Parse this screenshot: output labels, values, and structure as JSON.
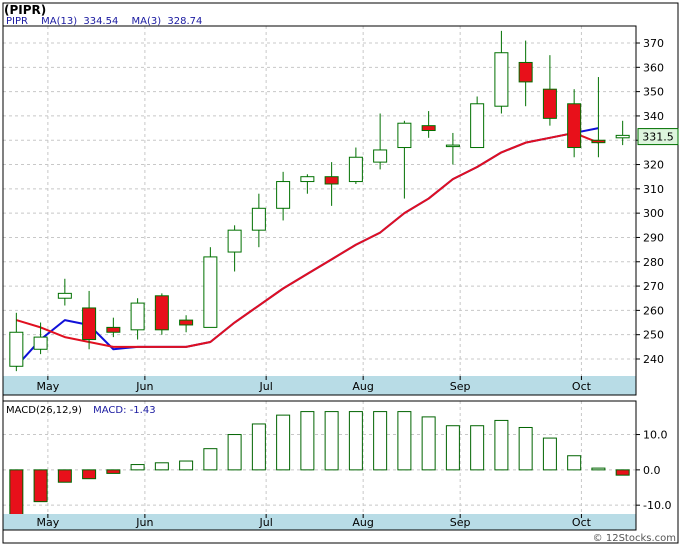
{
  "title": "(PIPR)",
  "footer": "© 12Stocks.com",
  "colors": {
    "up": "#ffffff",
    "down": "#e8101a",
    "candle_border": "#007000",
    "ma13": "#1010d8",
    "ma3": "#e01020",
    "macd_bar": "#006400",
    "axis_band": "#b8dce6",
    "legend_text": "#1a1aa0",
    "price_badge": "#ddf5dd"
  },
  "chart_data": [
    {
      "type": "candlestick",
      "legend": [
        {
          "name": "PIPR",
          "color": "#1a1aa0"
        },
        {
          "name": "MA(13)",
          "value": "334.54",
          "color": "#1a1aa0"
        },
        {
          "name": "MA(3)",
          "value": "328.74",
          "color": "#1a1aa0"
        }
      ],
      "x_labels": [
        "May",
        "Jun",
        "Jul",
        "Aug",
        "Sep",
        "Oct"
      ],
      "x_label_index": [
        1.3,
        5.3,
        10.3,
        14.3,
        18.3,
        23.3
      ],
      "yticks": [
        240,
        250,
        260,
        270,
        280,
        290,
        300,
        310,
        320,
        330,
        340,
        350,
        360,
        370
      ],
      "ylim": [
        233,
        377
      ],
      "last_price": "331.5",
      "last_price_value": 331.5,
      "candles": [
        {
          "o": 237,
          "h": 259,
          "l": 235,
          "c": 251
        },
        {
          "o": 244,
          "h": 255,
          "l": 242,
          "c": 249
        },
        {
          "o": 265,
          "h": 273,
          "l": 262,
          "c": 267
        },
        {
          "o": 261,
          "h": 268,
          "l": 244,
          "c": 248
        },
        {
          "o": 253,
          "h": 257,
          "l": 249,
          "c": 251
        },
        {
          "o": 252,
          "h": 265,
          "l": 248,
          "c": 263
        },
        {
          "o": 266,
          "h": 267,
          "l": 250,
          "c": 252
        },
        {
          "o": 256,
          "h": 258,
          "l": 251,
          "c": 254
        },
        {
          "o": 253,
          "h": 286,
          "l": 253,
          "c": 282
        },
        {
          "o": 284,
          "h": 295,
          "l": 276,
          "c": 293
        },
        {
          "o": 293,
          "h": 308,
          "l": 286,
          "c": 302
        },
        {
          "o": 302,
          "h": 317,
          "l": 297,
          "c": 313
        },
        {
          "o": 313,
          "h": 316,
          "l": 308,
          "c": 315
        },
        {
          "o": 315,
          "h": 321,
          "l": 303,
          "c": 312
        },
        {
          "o": 313,
          "h": 327,
          "l": 312,
          "c": 323
        },
        {
          "o": 321,
          "h": 341,
          "l": 318,
          "c": 326
        },
        {
          "o": 327,
          "h": 338,
          "l": 306,
          "c": 337
        },
        {
          "o": 336,
          "h": 342,
          "l": 331,
          "c": 334
        },
        {
          "o": 328,
          "h": 333,
          "l": 320,
          "c": 328
        },
        {
          "o": 327,
          "h": 348,
          "l": 327,
          "c": 345
        },
        {
          "o": 344,
          "h": 375,
          "l": 341,
          "c": 366
        },
        {
          "o": 362,
          "h": 371,
          "l": 344,
          "c": 354
        },
        {
          "o": 351,
          "h": 365,
          "l": 336,
          "c": 339
        },
        {
          "o": 345,
          "h": 351,
          "l": 323,
          "c": 327
        },
        {
          "o": 330,
          "h": 356,
          "l": 323,
          "c": 329
        },
        {
          "o": 331,
          "h": 338,
          "l": 328,
          "c": 332
        }
      ],
      "series": [
        {
          "name": "MA(13)",
          "color": "#1010d8",
          "values": [
            237,
            248,
            256,
            254,
            244,
            245,
            245,
            245,
            247,
            255,
            262,
            269,
            275,
            281,
            287,
            292,
            300,
            306,
            314,
            319,
            325,
            329,
            331,
            333,
            335
          ]
        },
        {
          "name": "MA(3)",
          "color": "#e01020",
          "values": [
            256,
            253,
            249,
            247,
            245,
            245,
            245,
            245,
            247,
            255,
            262,
            269,
            275,
            281,
            287,
            292,
            300,
            306,
            314,
            319,
            325,
            329,
            331,
            333,
            329
          ]
        }
      ]
    },
    {
      "type": "bar",
      "title": "MACD(26,12,9)",
      "legend_label": "MACD:",
      "legend_value": "-1.43",
      "yticks": [
        -10,
        0,
        10
      ],
      "ytick_labels": [
        "-10.0",
        "0.0",
        "10.0"
      ],
      "ylim": [
        -12.5,
        19.5
      ],
      "values": [
        -13,
        -9,
        -3.5,
        -2.5,
        -1,
        1.5,
        2,
        2.5,
        6,
        10,
        13,
        15.5,
        16.5,
        16.5,
        16.5,
        16.5,
        16.5,
        15,
        12.5,
        12.5,
        14,
        12,
        9,
        4,
        0.5,
        -1.5
      ]
    }
  ]
}
